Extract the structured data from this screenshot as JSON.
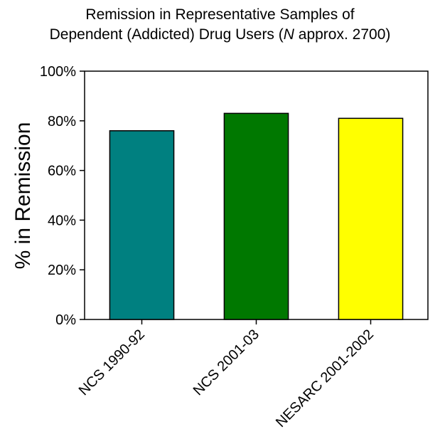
{
  "chart_data": {
    "type": "bar",
    "title_line1": "Remission in Representative Samples of",
    "title_line2_prefix": "Dependent (Addicted) Drug Users (",
    "title_line2_italic": "N",
    "title_line2_suffix": " approx. 2700)",
    "xlabel": "",
    "ylabel": "% in Remission",
    "categories": [
      "NCS 1990-92",
      "NCS 2001-03",
      "NESARC 2001-2002"
    ],
    "values": [
      76,
      83,
      81
    ],
    "colors": [
      "#008080",
      "#007800",
      "#ffff00"
    ],
    "ylim": [
      0,
      100
    ],
    "yticks": [
      0,
      20,
      40,
      60,
      80,
      100
    ],
    "ytick_labels": [
      "0%",
      "20%",
      "40%",
      "60%",
      "80%",
      "100%"
    ],
    "grid": false,
    "legend": "none"
  }
}
